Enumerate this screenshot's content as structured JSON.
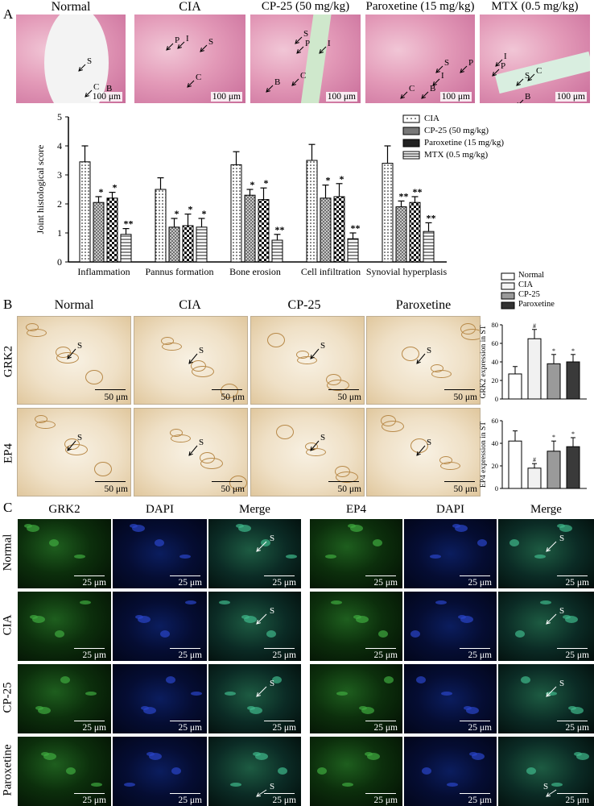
{
  "panels": {
    "a_letter": "A",
    "b_letter": "B",
    "c_letter": "C"
  },
  "panel_a": {
    "column_titles": [
      "Normal",
      "CIA",
      "CP-25 (50 mg/kg)",
      "Paroxetine (15 mg/kg)",
      "MTX (0.5 mg/kg)"
    ],
    "scale_label": "100 μm",
    "image_annotations": [
      [
        "S",
        "C",
        "B"
      ],
      [
        "P",
        "I",
        "S",
        "C",
        "B"
      ],
      [
        "S",
        "P",
        "I",
        "C",
        "B"
      ],
      [
        "S",
        "P",
        "I",
        "C",
        "B"
      ],
      [
        "I",
        "P",
        "C",
        "S",
        "B"
      ]
    ]
  },
  "panel_b": {
    "column_titles": [
      "Normal",
      "CIA",
      "CP-25",
      "Paroxetine"
    ],
    "row_labels": [
      "GRK2",
      "EP4"
    ],
    "scale_label": "50 μm",
    "arrow_label": "S"
  },
  "panel_c": {
    "left_titles": [
      "GRK2",
      "DAPI",
      "Merge"
    ],
    "right_titles": [
      "EP4",
      "DAPI",
      "Merge"
    ],
    "row_labels": [
      "Normal",
      "CIA",
      "CP-25",
      "Paroxetine"
    ],
    "scale_label": "25 μm",
    "arrow_label": "S"
  },
  "chart_data": [
    {
      "type": "bar",
      "ylabel": "Joint histological score",
      "ylim": [
        0,
        5
      ],
      "yticks": [
        "0",
        "1",
        "2",
        "3",
        "4",
        "5"
      ],
      "categories": [
        "Inflammation",
        "Pannus formation",
        "Bone erosion",
        "Cell infiltration",
        "Synovial hyperplasis"
      ],
      "legend_position": "top-right",
      "series": [
        {
          "name": "CIA",
          "values": [
            3.45,
            2.5,
            3.35,
            3.5,
            3.4
          ],
          "errors": [
            0.55,
            0.4,
            0.45,
            0.55,
            0.6
          ],
          "marks": [
            "",
            "",
            "",
            "",
            ""
          ],
          "color": "#dcdcdc"
        },
        {
          "name": "CP-25 (50 mg/kg)",
          "values": [
            2.05,
            1.2,
            2.3,
            2.2,
            1.9
          ],
          "errors": [
            0.2,
            0.3,
            0.2,
            0.45,
            0.2
          ],
          "marks": [
            "*",
            "*",
            "*",
            "*",
            "**"
          ],
          "color": "#555555"
        },
        {
          "name": "Paroxetine (15 mg/kg)",
          "values": [
            2.2,
            1.25,
            2.15,
            2.25,
            2.05
          ],
          "errors": [
            0.2,
            0.4,
            0.4,
            0.45,
            0.2
          ],
          "marks": [
            "*",
            "*",
            "*",
            "*",
            "**"
          ],
          "color": "#222222"
        },
        {
          "name": "MTX (0.5 mg/kg)",
          "values": [
            0.95,
            1.2,
            0.75,
            0.8,
            1.05
          ],
          "errors": [
            0.2,
            0.3,
            0.2,
            0.2,
            0.3
          ],
          "marks": [
            "**",
            "*",
            "**",
            "**",
            "**"
          ],
          "color": "#ffffff"
        }
      ]
    },
    {
      "type": "bar",
      "ylabel": "GRK2 expression in ST",
      "ylim": [
        0,
        80
      ],
      "yticks": [
        "0",
        "20",
        "40",
        "60",
        "80"
      ],
      "categories": [
        "Normal",
        "CIA",
        "CP-25",
        "Paroxetine"
      ],
      "values": [
        27,
        65,
        38,
        40
      ],
      "errors": [
        8,
        10,
        10,
        8
      ],
      "marks": [
        "",
        "#",
        "*",
        "*"
      ]
    },
    {
      "type": "bar",
      "ylabel": "EP4 expression in ST",
      "ylim": [
        0,
        60
      ],
      "yticks": [
        "0",
        "20",
        "40",
        "60"
      ],
      "categories": [
        "Normal",
        "CIA",
        "CP-25",
        "Paroxetine"
      ],
      "values": [
        42,
        18,
        33,
        37
      ],
      "errors": [
        9,
        4,
        9,
        8
      ],
      "marks": [
        "",
        "#",
        "*",
        "*"
      ]
    }
  ],
  "panel_b_legend": [
    "Normal",
    "CIA",
    "CP-25",
    "Paroxetine"
  ]
}
